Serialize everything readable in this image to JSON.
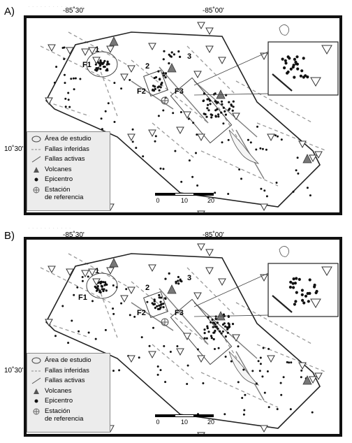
{
  "panels": [
    {
      "label": "A)"
    },
    {
      "label": "B)"
    }
  ],
  "axes": {
    "lon_left": "-85˚30'",
    "lon_right": "-85˚00'",
    "lat": "10˚30'"
  },
  "zones": {
    "z1": "1",
    "z2": "2",
    "z3": "3",
    "f1": "F1",
    "f2": "F2",
    "f3": "F3"
  },
  "legend": {
    "area": "Área de estudio",
    "inferred": "Fallas inferidas",
    "active": "Fallas activas",
    "volcanoes": "Volcanes",
    "epicenter": "Epicentro",
    "station_line1": "Estación",
    "station_line2": "de referencia"
  },
  "scale": {
    "t0": "0",
    "t1": "10",
    "t2": "20"
  },
  "colors": {
    "frame": "#111111",
    "legend_bg": "#ececec",
    "dots": "#111111",
    "faults": "#9a9a9a"
  }
}
